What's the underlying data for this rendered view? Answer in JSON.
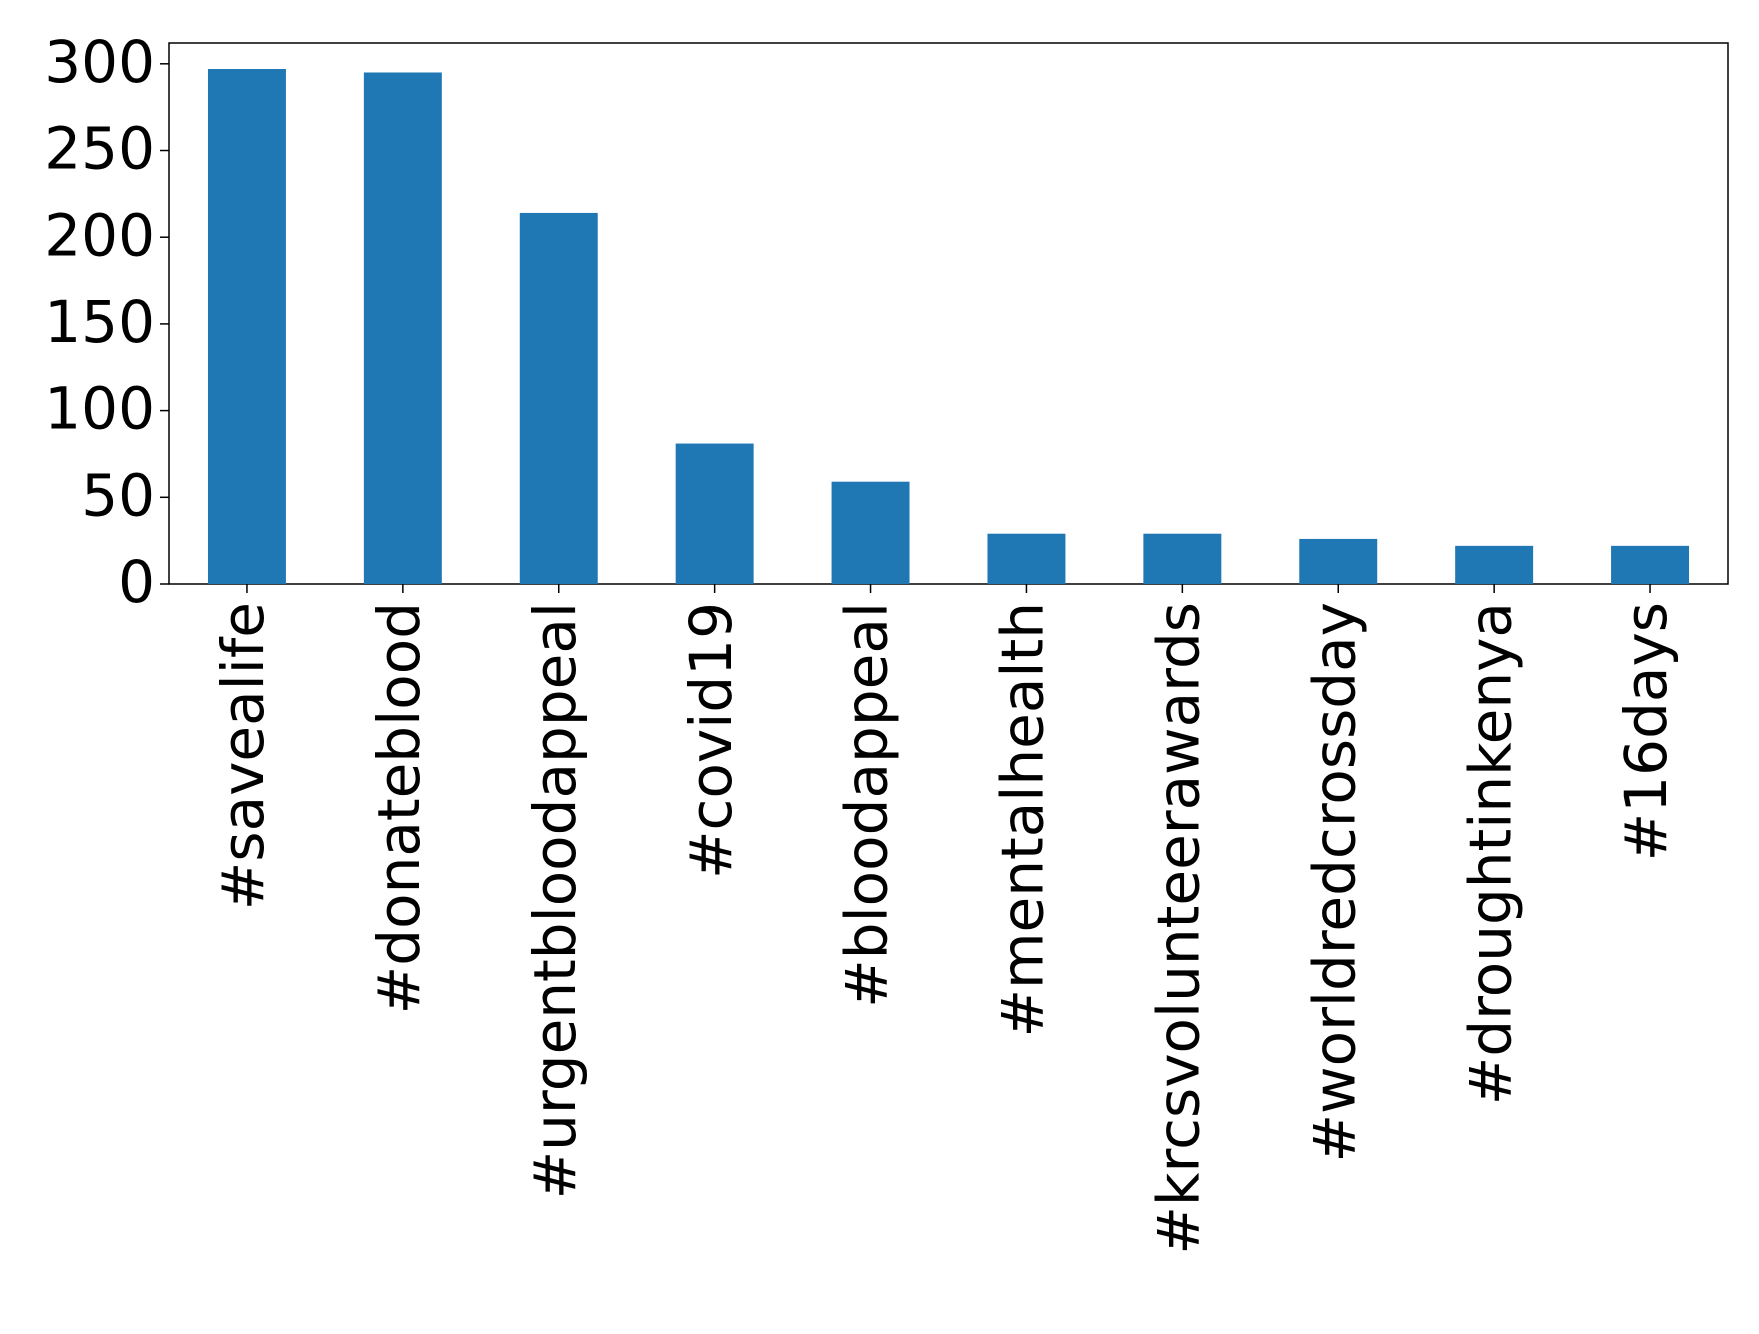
{
  "chart_data": {
    "type": "bar",
    "categories": [
      "#savealife",
      "#donateblood",
      "#urgentbloodappeal",
      "#covid19",
      "#bloodappeal",
      "#mentalhealth",
      "#krcsvolunteerawards",
      "#worldredcrossday",
      "#droughtinkenya",
      "#16days"
    ],
    "values": [
      297,
      295,
      214,
      81,
      59,
      29,
      29,
      26,
      22,
      22
    ],
    "color": "#1f77b4",
    "ylim": [
      0,
      312
    ],
    "yticks": [
      0,
      50,
      100,
      150,
      200,
      250,
      300
    ],
    "grid": false
  }
}
